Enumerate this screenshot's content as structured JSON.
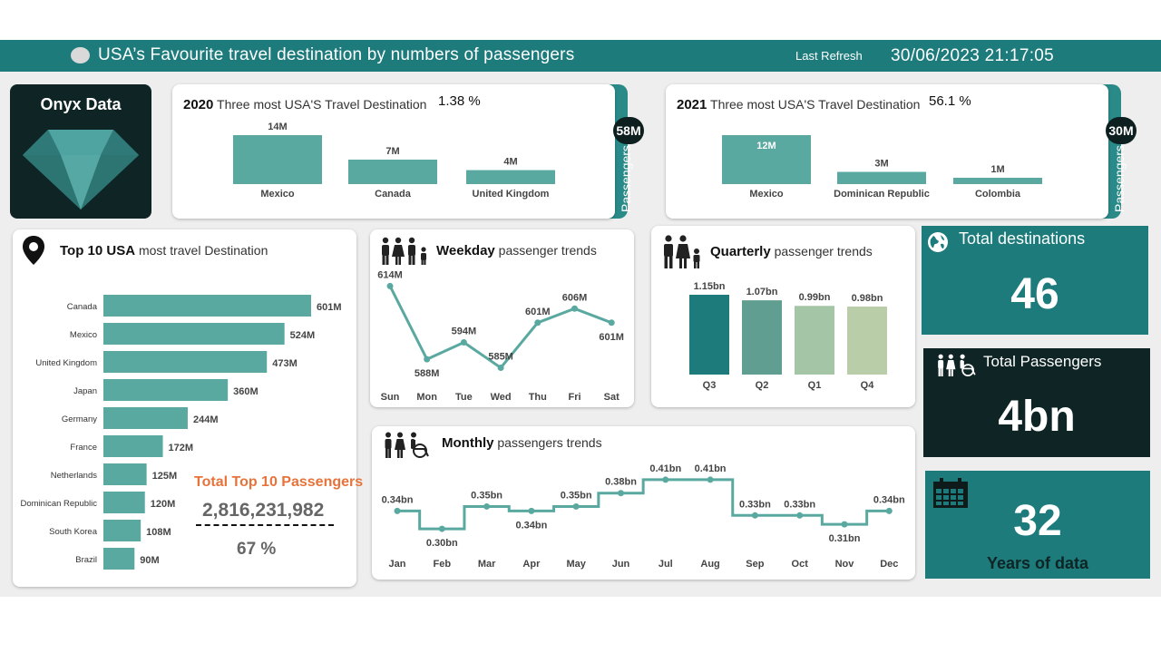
{
  "header": {
    "title": "USA’s Favourite travel destination by numbers of passengers",
    "last_refresh_label": "Last Refresh",
    "timestamp": "30/06/2023 21:17:05"
  },
  "logo": {
    "title": "Onyx Data",
    "icon": "diamond-icon"
  },
  "colors": {
    "teal": "#5aa9a0",
    "dark_teal": "#1d7b7c",
    "dark": "#0f2424",
    "orange": "#e8733a"
  },
  "card_2020": {
    "year": "2020",
    "subtitle": "Three most USA'S Travel Destination",
    "pct": "1.38 %",
    "side_label": "Passengers",
    "badge": "58M",
    "chart_data": {
      "type": "bar",
      "categories": [
        "Mexico",
        "Canada",
        "United Kingdom"
      ],
      "values": [
        14,
        7,
        4
      ],
      "labels": [
        "14M",
        "7M",
        "4M"
      ]
    }
  },
  "card_2021": {
    "year": "2021",
    "subtitle": "Three most USA'S Travel Destination",
    "pct": "56.1 %",
    "side_label": "Passengers",
    "badge": "30M",
    "chart_data": {
      "type": "bar",
      "categories": [
        "Mexico",
        "Dominican Republic",
        "Colombia"
      ],
      "values": [
        12,
        3,
        1
      ],
      "labels": [
        "12M",
        "3M",
        "1M"
      ]
    }
  },
  "top10": {
    "title_bold": "Top 10 USA",
    "title_rest": "most travel Destination",
    "icon": "map-pin-icon",
    "total_label": "Total Top 10 Passengers",
    "total_value": "2,816,231,982",
    "share": "67 %",
    "chart_data": {
      "type": "bar",
      "orientation": "horizontal",
      "categories": [
        "Canada",
        "Mexico",
        "United Kingdom",
        "Japan",
        "Germany",
        "France",
        "Netherlands",
        "Dominican Republic",
        "South Korea",
        "Brazil"
      ],
      "values": [
        601,
        524,
        473,
        360,
        244,
        172,
        125,
        120,
        108,
        90
      ],
      "labels": [
        "601M",
        "524M",
        "473M",
        "360M",
        "244M",
        "172M",
        "125M",
        "120M",
        "108M",
        "90M"
      ]
    }
  },
  "weekday": {
    "title_bold": "Weekday",
    "title_rest": "passenger trends",
    "icon": "family-icon",
    "chart_data": {
      "type": "line",
      "categories": [
        "Sun",
        "Mon",
        "Tue",
        "Wed",
        "Thu",
        "Fri",
        "Sat"
      ],
      "values": [
        614,
        588,
        594,
        585,
        601,
        606,
        601
      ],
      "labels": [
        "614M",
        "588M",
        "594M",
        "585M",
        "601M",
        "606M",
        "601M"
      ]
    }
  },
  "quarterly": {
    "title_bold": "Quarterly",
    "title_rest": "passenger trends",
    "icon": "family-icon",
    "chart_data": {
      "type": "bar",
      "categories": [
        "Q3",
        "Q2",
        "Q1",
        "Q4"
      ],
      "values": [
        1.15,
        1.07,
        0.99,
        0.98
      ],
      "labels": [
        "1.15bn",
        "1.07bn",
        "0.99bn",
        "0.98bn"
      ],
      "colors": [
        "#1d7b7c",
        "#5f9e90",
        "#a5c6a6",
        "#b9cda9"
      ]
    }
  },
  "monthly": {
    "title_bold": "Monthly",
    "title_rest": "passengers trends",
    "icon": "family-wheelchair-icon",
    "chart_data": {
      "type": "line",
      "step": true,
      "categories": [
        "Jan",
        "Feb",
        "Mar",
        "Apr",
        "May",
        "Jun",
        "Jul",
        "Aug",
        "Sep",
        "Oct",
        "Nov",
        "Dec"
      ],
      "values": [
        0.34,
        0.3,
        0.35,
        0.34,
        0.35,
        0.38,
        0.41,
        0.41,
        0.33,
        0.33,
        0.31,
        0.34
      ],
      "labels": [
        "0.34bn",
        "0.30bn",
        "0.35bn",
        "0.34bn",
        "0.35bn",
        "0.38bn",
        "0.41bn",
        "0.41bn",
        "0.33bn",
        "0.33bn",
        "0.31bn",
        "0.34bn"
      ]
    }
  },
  "kpis": {
    "destinations": {
      "label": "Total destinations",
      "value": "46",
      "icon": "globe-icon"
    },
    "passengers": {
      "label": "Total Passengers",
      "value": "4bn",
      "icon": "family-wheelchair-icon"
    },
    "years": {
      "label": "Years of data",
      "value": "32",
      "icon": "calendar-icon"
    }
  }
}
